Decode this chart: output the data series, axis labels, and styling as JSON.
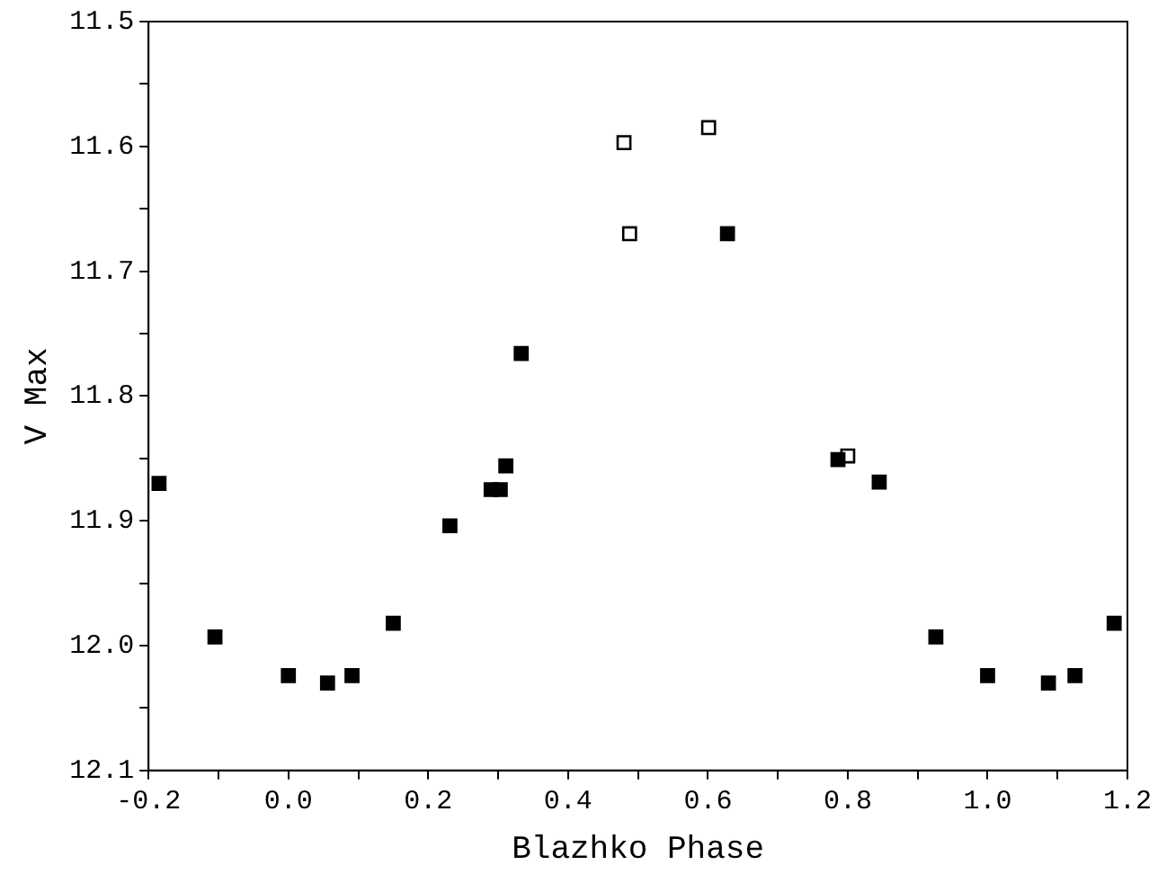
{
  "chart_data": {
    "type": "scatter",
    "xlabel": "Blazhko Phase",
    "ylabel": "V Max",
    "xlim": [
      -0.2,
      1.2
    ],
    "xticks": [
      {
        "value": -0.2,
        "label": "-0.2"
      },
      {
        "value": -0.1,
        "label": null
      },
      {
        "value": 0,
        "label": "0.0"
      },
      {
        "value": 0.1,
        "label": null
      },
      {
        "value": 0.2,
        "label": "0.2"
      },
      {
        "value": 0.3,
        "label": null
      },
      {
        "value": 0.4,
        "label": "0.4"
      },
      {
        "value": 0.5,
        "label": null
      },
      {
        "value": 0.6,
        "label": "0.6"
      },
      {
        "value": 0.7,
        "label": null
      },
      {
        "value": 0.8,
        "label": "0.8"
      },
      {
        "value": 0.9,
        "label": null
      },
      {
        "value": 1.0,
        "label": "1.0"
      },
      {
        "value": 1.1,
        "label": null
      },
      {
        "value": 1.2,
        "label": "1.2"
      }
    ],
    "ylim": [
      12.1,
      11.5
    ],
    "yticks": [
      {
        "value": 11.5,
        "label": "11.5"
      },
      {
        "value": 11.55,
        "label": null
      },
      {
        "value": 11.6,
        "label": "11.6"
      },
      {
        "value": 11.65,
        "label": null
      },
      {
        "value": 11.7,
        "label": "11.7"
      },
      {
        "value": 11.75,
        "label": null
      },
      {
        "value": 11.8,
        "label": "11.8"
      },
      {
        "value": 11.85,
        "label": null
      },
      {
        "value": 11.9,
        "label": "11.9"
      },
      {
        "value": 11.95,
        "label": null
      },
      {
        "value": 12.0,
        "label": "12.0"
      },
      {
        "value": 12.05,
        "label": null
      },
      {
        "value": 12.1,
        "label": "12.1"
      }
    ],
    "grid": false,
    "legend": false,
    "marker": "square",
    "series": [
      {
        "color": "#000000",
        "x": [
          -0.185,
          -0.105,
          0.0,
          0.056,
          0.091,
          0.15,
          0.231,
          0.29,
          0.303,
          0.311,
          0.333,
          0.628,
          0.786,
          0.845,
          0.926,
          1.0,
          1.087,
          1.125,
          1.181
        ],
        "values": [
          11.87,
          11.993,
          12.024,
          12.03,
          12.024,
          11.982,
          11.904,
          11.875,
          11.875,
          11.856,
          11.766,
          11.67,
          11.851,
          11.869,
          11.993,
          12.024,
          12.03,
          12.024,
          11.982
        ]
      },
      {
        "color": "#ffffff",
        "x": [
          0.48,
          0.488,
          0.601,
          0.8
        ],
        "values": [
          11.597,
          11.67,
          11.585,
          11.848
        ]
      }
    ]
  }
}
